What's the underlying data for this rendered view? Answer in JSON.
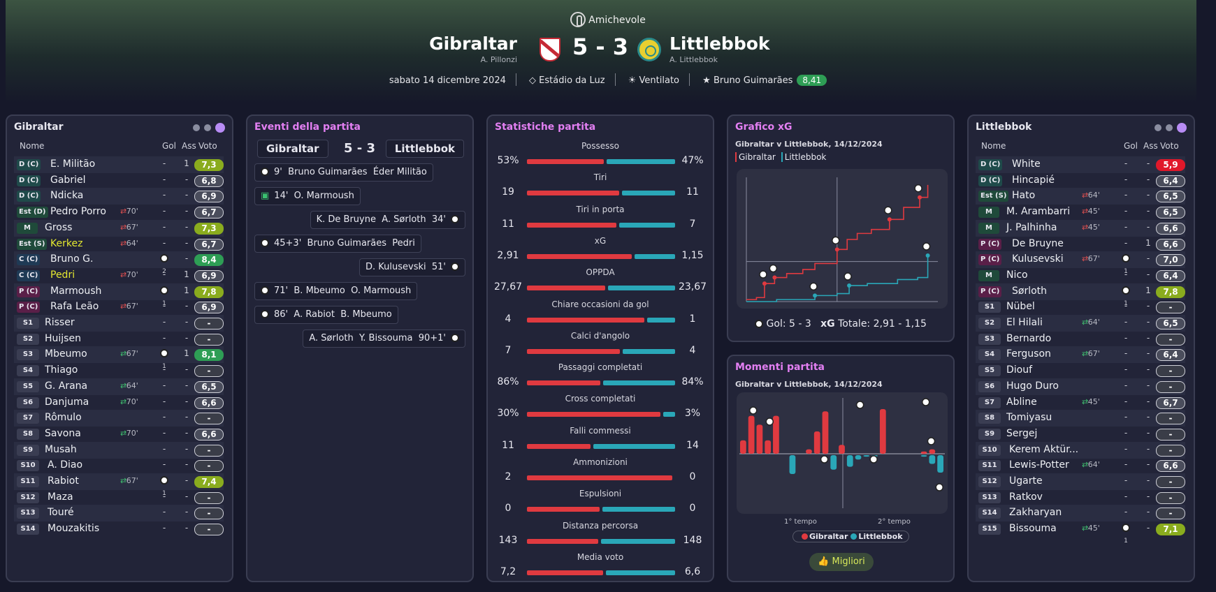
{
  "match": {
    "competition": "Amichevole",
    "home_team": "Gibraltar",
    "home_coach": "A. Pillonzi",
    "away_team": "Littlebbok",
    "away_coach": "A. Littlebbok",
    "score": "5 - 3",
    "date": "sabato 14 dicembre 2024",
    "stadium": "Estádio da Luz",
    "weather": "Ventilato",
    "player_of_match": "Bruno Guimarães",
    "player_of_match_rating": "8,41"
  },
  "home_lineup": {
    "title": "Gibraltar",
    "headers": {
      "name": "Nome",
      "goals": "Gol",
      "assists": "Ass",
      "rating": "Voto"
    },
    "players": [
      {
        "pos": "D (C)",
        "pc": "d",
        "name": "E. Militão",
        "sub": "",
        "g": "-",
        "gc": 0,
        "a": "1",
        "r": "7,3",
        "rc": "yg"
      },
      {
        "pos": "D (C)",
        "pc": "d",
        "name": "Gabriel",
        "sub": "",
        "g": "-",
        "gc": 0,
        "a": "-",
        "r": "6,8",
        "rc": ""
      },
      {
        "pos": "D (C)",
        "pc": "d",
        "name": "Ndicka",
        "sub": "",
        "g": "-",
        "gc": 0,
        "a": "-",
        "r": "6,9",
        "rc": ""
      },
      {
        "pos": "Est (D)",
        "pc": "m",
        "name": "Pedro Porro",
        "sub": "70'",
        "si": false,
        "g": "-",
        "gc": 0,
        "a": "-",
        "r": "6,7",
        "rc": ""
      },
      {
        "pos": "M",
        "pc": "m",
        "name": "Gross",
        "sub": "67'",
        "si": false,
        "g": "-",
        "gc": 0,
        "a": "-",
        "r": "7,3",
        "rc": "yg"
      },
      {
        "pos": "Est (S)",
        "pc": "m",
        "name": "Kerkez",
        "y": true,
        "sub": "64'",
        "si": false,
        "g": "-",
        "gc": 0,
        "a": "-",
        "r": "6,7",
        "rc": ""
      },
      {
        "pos": "C (C)",
        "pc": "c",
        "name": "Bruno G.",
        "sub": "",
        "g": "",
        "gc": 2,
        "a": "-",
        "r": "8,4",
        "rc": "gr"
      },
      {
        "pos": "C (C)",
        "pc": "c",
        "name": "Pedri",
        "y": true,
        "sub": "70'",
        "si": false,
        "g": "-",
        "gc": 0,
        "a": "1",
        "r": "6,9",
        "rc": ""
      },
      {
        "pos": "P (C)",
        "pc": "p",
        "name": "Marmoush",
        "sub": "",
        "g": "",
        "gc": 1,
        "a": "1",
        "r": "7,8",
        "rc": "yg"
      },
      {
        "pos": "P (C)",
        "pc": "p",
        "name": "Rafa Leão",
        "sub": "67'",
        "si": false,
        "g": "-",
        "gc": 0,
        "a": "-",
        "r": "6,9",
        "rc": ""
      },
      {
        "pos": "S1",
        "pc": "s",
        "name": "Risser",
        "sub": "",
        "g": "-",
        "gc": 0,
        "a": "-",
        "r": "-",
        "rc": "ds"
      },
      {
        "pos": "S2",
        "pc": "s",
        "name": "Huijsen",
        "sub": "",
        "g": "-",
        "gc": 0,
        "a": "-",
        "r": "-",
        "rc": "ds"
      },
      {
        "pos": "S3",
        "pc": "s",
        "name": "Mbeumo",
        "sub": "67'",
        "si": true,
        "g": "",
        "gc": 1,
        "a": "1",
        "r": "8,1",
        "rc": "gr"
      },
      {
        "pos": "S4",
        "pc": "s",
        "name": "Thiago",
        "sub": "",
        "g": "-",
        "gc": 0,
        "a": "-",
        "r": "-",
        "rc": "ds"
      },
      {
        "pos": "S5",
        "pc": "s",
        "name": "G. Arana",
        "sub": "64'",
        "si": true,
        "g": "-",
        "gc": 0,
        "a": "-",
        "r": "6,5",
        "rc": ""
      },
      {
        "pos": "S6",
        "pc": "s",
        "name": "Danjuma",
        "sub": "70'",
        "si": true,
        "g": "-",
        "gc": 0,
        "a": "-",
        "r": "6,6",
        "rc": ""
      },
      {
        "pos": "S7",
        "pc": "s",
        "name": "Rômulo",
        "sub": "",
        "g": "-",
        "gc": 0,
        "a": "-",
        "r": "-",
        "rc": "ds"
      },
      {
        "pos": "S8",
        "pc": "s",
        "name": "Savona",
        "sub": "70'",
        "si": true,
        "g": "-",
        "gc": 0,
        "a": "-",
        "r": "6,6",
        "rc": ""
      },
      {
        "pos": "S9",
        "pc": "s",
        "name": "Musah",
        "sub": "",
        "g": "-",
        "gc": 0,
        "a": "-",
        "r": "-",
        "rc": "ds"
      },
      {
        "pos": "S10",
        "pc": "s",
        "name": "A. Diao",
        "sub": "",
        "g": "-",
        "gc": 0,
        "a": "-",
        "r": "-",
        "rc": "ds"
      },
      {
        "pos": "S11",
        "pc": "s",
        "name": "Rabiot",
        "sub": "67'",
        "si": true,
        "g": "",
        "gc": 1,
        "a": "-",
        "r": "7,4",
        "rc": "yg"
      },
      {
        "pos": "S12",
        "pc": "s",
        "name": "Maza",
        "sub": "",
        "g": "-",
        "gc": 0,
        "a": "-",
        "r": "-",
        "rc": "ds"
      },
      {
        "pos": "S13",
        "pc": "s",
        "name": "Touré",
        "sub": "",
        "g": "-",
        "gc": 0,
        "a": "-",
        "r": "-",
        "rc": "ds"
      },
      {
        "pos": "S14",
        "pc": "s",
        "name": "Mouzakitis",
        "sub": "",
        "g": "-",
        "gc": 0,
        "a": "-",
        "r": "-",
        "rc": "ds"
      }
    ]
  },
  "away_lineup": {
    "title": "Littlebbok",
    "headers": {
      "name": "Nome",
      "goals": "Gol",
      "assists": "Ass",
      "rating": "Voto"
    },
    "players": [
      {
        "pos": "D (C)",
        "pc": "d",
        "name": "White",
        "sub": "",
        "g": "-",
        "gc": 0,
        "a": "-",
        "r": "5,9",
        "rc": "rd"
      },
      {
        "pos": "D (C)",
        "pc": "d",
        "name": "Hincapié",
        "sub": "",
        "g": "-",
        "gc": 0,
        "a": "-",
        "r": "6,4",
        "rc": ""
      },
      {
        "pos": "Est (S)",
        "pc": "m",
        "name": "Hato",
        "sub": "64'",
        "si": false,
        "g": "-",
        "gc": 0,
        "a": "-",
        "r": "6,5",
        "rc": ""
      },
      {
        "pos": "M",
        "pc": "m",
        "name": "M. Arambarri",
        "sub": "45'",
        "si": false,
        "g": "-",
        "gc": 0,
        "a": "-",
        "r": "6,5",
        "rc": ""
      },
      {
        "pos": "M",
        "pc": "m",
        "name": "J. Palhinha",
        "sub": "45'",
        "si": false,
        "g": "-",
        "gc": 0,
        "a": "-",
        "r": "6,6",
        "rc": ""
      },
      {
        "pos": "P (C)",
        "pc": "p",
        "name": "De Bruyne",
        "sub": "",
        "g": "-",
        "gc": 0,
        "a": "1",
        "r": "6,6",
        "rc": ""
      },
      {
        "pos": "P (C)",
        "pc": "p",
        "name": "Kulusevski",
        "sub": "67'",
        "si": false,
        "g": "",
        "gc": 1,
        "a": "-",
        "r": "7,0",
        "rc": ""
      },
      {
        "pos": "M",
        "pc": "m",
        "name": "Nico",
        "sub": "",
        "g": "-",
        "gc": 0,
        "a": "-",
        "r": "6,4",
        "rc": ""
      },
      {
        "pos": "P (C)",
        "pc": "p",
        "name": "Sørloth",
        "sub": "",
        "g": "",
        "gc": 1,
        "a": "1",
        "r": "7,8",
        "rc": "yg"
      },
      {
        "pos": "S1",
        "pc": "s",
        "name": "Nübel",
        "sub": "",
        "g": "-",
        "gc": 0,
        "a": "-",
        "r": "-",
        "rc": "ds"
      },
      {
        "pos": "S2",
        "pc": "s",
        "name": "El Hilali",
        "sub": "64'",
        "si": true,
        "g": "-",
        "gc": 0,
        "a": "-",
        "r": "6,5",
        "rc": ""
      },
      {
        "pos": "S3",
        "pc": "s",
        "name": "Bernardo",
        "sub": "",
        "g": "-",
        "gc": 0,
        "a": "-",
        "r": "-",
        "rc": "ds"
      },
      {
        "pos": "S4",
        "pc": "s",
        "name": "Ferguson",
        "sub": "67'",
        "si": true,
        "g": "-",
        "gc": 0,
        "a": "-",
        "r": "6,4",
        "rc": ""
      },
      {
        "pos": "S5",
        "pc": "s",
        "name": "Diouf",
        "sub": "",
        "g": "-",
        "gc": 0,
        "a": "-",
        "r": "-",
        "rc": "ds"
      },
      {
        "pos": "S6",
        "pc": "s",
        "name": "Hugo Duro",
        "sub": "",
        "g": "-",
        "gc": 0,
        "a": "-",
        "r": "-",
        "rc": "ds"
      },
      {
        "pos": "S7",
        "pc": "s",
        "name": "Abline",
        "sub": "45'",
        "si": true,
        "g": "-",
        "gc": 0,
        "a": "-",
        "r": "6,7",
        "rc": ""
      },
      {
        "pos": "S8",
        "pc": "s",
        "name": "Tomiyasu",
        "sub": "",
        "g": "-",
        "gc": 0,
        "a": "-",
        "r": "-",
        "rc": "ds"
      },
      {
        "pos": "S9",
        "pc": "s",
        "name": "Sergej",
        "sub": "",
        "g": "-",
        "gc": 0,
        "a": "-",
        "r": "-",
        "rc": "ds"
      },
      {
        "pos": "S10",
        "pc": "s",
        "name": "Kerem Aktür...",
        "sub": "",
        "g": "-",
        "gc": 0,
        "a": "-",
        "r": "-",
        "rc": "ds"
      },
      {
        "pos": "S11",
        "pc": "s",
        "name": "Lewis-Potter",
        "sub": "64'",
        "si": true,
        "g": "-",
        "gc": 0,
        "a": "-",
        "r": "6,6",
        "rc": ""
      },
      {
        "pos": "S12",
        "pc": "s",
        "name": "Ugarte",
        "sub": "",
        "g": "-",
        "gc": 0,
        "a": "-",
        "r": "-",
        "rc": "ds"
      },
      {
        "pos": "S13",
        "pc": "s",
        "name": "Ratkov",
        "sub": "",
        "g": "-",
        "gc": 0,
        "a": "-",
        "r": "-",
        "rc": "ds"
      },
      {
        "pos": "S14",
        "pc": "s",
        "name": "Zakharyan",
        "sub": "",
        "g": "-",
        "gc": 0,
        "a": "-",
        "r": "-",
        "rc": "ds"
      },
      {
        "pos": "S15",
        "pc": "s",
        "name": "Bissouma",
        "sub": "45'",
        "si": true,
        "g": "",
        "gc": 1,
        "a": "-",
        "r": "7,1",
        "rc": "yg"
      }
    ]
  },
  "events": {
    "title": "Eventi della partita",
    "home": "Gibraltar",
    "away": "Littlebbok",
    "score": "5 - 3",
    "items": [
      {
        "side": "home",
        "icon": "ball",
        "text": "9'  Bruno Guimarães  Éder Militão"
      },
      {
        "side": "home",
        "icon": "var",
        "text": "14'  O. Marmoush"
      },
      {
        "side": "away",
        "icon": "ball",
        "text": "K. De Bruyne  A. Sørloth  34'"
      },
      {
        "side": "home",
        "icon": "ball",
        "text": "45+3'  Bruno Guimarães  Pedri"
      },
      {
        "side": "away",
        "icon": "ball",
        "text": "D. Kulusevski  51'"
      },
      {
        "side": "home",
        "icon": "ball",
        "text": "71'  B. Mbeumo  O. Marmoush"
      },
      {
        "side": "home",
        "icon": "ball",
        "text": "86'  A. Rabiot  B. Mbeumo"
      },
      {
        "side": "away",
        "icon": "ball",
        "text": "A. Sørloth  Y. Bissouma  90+1'"
      }
    ]
  },
  "stats": {
    "title": "Statistiche partita",
    "items": [
      {
        "label": "Possesso",
        "home": "53%",
        "away": "47%",
        "hv": 53,
        "av": 47
      },
      {
        "label": "Tiri",
        "home": "19",
        "away": "11",
        "hv": 19,
        "av": 11
      },
      {
        "label": "Tiri in porta",
        "home": "11",
        "away": "7",
        "hv": 11,
        "av": 7
      },
      {
        "label": "xG",
        "home": "2,91",
        "away": "1,15",
        "hv": 2.91,
        "av": 1.15
      },
      {
        "label": "OPPDA",
        "home": "27,67",
        "away": "23,67",
        "hv": 27.67,
        "av": 23.67
      },
      {
        "label": "Chiare occasioni da gol",
        "home": "4",
        "away": "1",
        "hv": 4,
        "av": 1
      },
      {
        "label": "Calci d'angolo",
        "home": "7",
        "away": "4",
        "hv": 7,
        "av": 4
      },
      {
        "label": "Passaggi completati",
        "home": "86%",
        "away": "84%",
        "hv": 86,
        "av": 84
      },
      {
        "label": "Cross completati",
        "home": "30%",
        "away": "3%",
        "hv": 30,
        "av": 3
      },
      {
        "label": "Falli commessi",
        "home": "11",
        "away": "14",
        "hv": 11,
        "av": 14
      },
      {
        "label": "Ammonizioni",
        "home": "2",
        "away": "0",
        "hv": 2,
        "av": 0
      },
      {
        "label": "Espulsioni",
        "home": "0",
        "away": "0",
        "hv": 0,
        "av": 0
      },
      {
        "label": "Distanza percorsa",
        "home": "143",
        "away": "148",
        "hv": 143,
        "av": 148
      },
      {
        "label": "Media voto",
        "home": "7,2",
        "away": "6,6",
        "hv": 7.2,
        "av": 6.6
      }
    ]
  },
  "xg_chart": {
    "title": "Grafico xG",
    "subtitle": "Gibraltar v Littlebbok, 14/12/2024",
    "legend_home": "Gibraltar",
    "legend_away": "Littlebbok",
    "footer_goals": "Gol: 5 - 3",
    "footer_xg_label": "xG",
    "footer_xg": "Totale: 2,91 - 1,15",
    "home_color": "#e03a40",
    "away_color": "#2aa7b8"
  },
  "momentum": {
    "title": "Momenti partita",
    "subtitle": "Gibraltar v Littlebbok, 14/12/2024",
    "label_first": "1° tempo",
    "label_second": "2° tempo",
    "legend_home": "Gibraltar",
    "legend_away": "Littlebbok",
    "best_label": "Migliori"
  },
  "chart_data": [
    {
      "type": "line",
      "series": [
        {
          "name": "Gibraltar",
          "points": [
            [
              0,
              0.05
            ],
            [
              5,
              0.1
            ],
            [
              9,
              0.45
            ],
            [
              14,
              0.6
            ],
            [
              20,
              0.7
            ],
            [
              28,
              0.8
            ],
            [
              34,
              0.95
            ],
            [
              45,
              1.3
            ],
            [
              50,
              1.55
            ],
            [
              55,
              1.7
            ],
            [
              62,
              1.8
            ],
            [
              71,
              2.05
            ],
            [
              78,
              2.35
            ],
            [
              86,
              2.6
            ],
            [
              90,
              2.91
            ]
          ],
          "goals": [
            9,
            14,
            45,
            71,
            86
          ]
        },
        {
          "name": "Littlebbok",
          "points": [
            [
              0,
              0.0
            ],
            [
              15,
              0.05
            ],
            [
              34,
              0.15
            ],
            [
              45,
              0.2
            ],
            [
              51,
              0.4
            ],
            [
              60,
              0.45
            ],
            [
              75,
              0.55
            ],
            [
              85,
              0.6
            ],
            [
              90,
              1.15
            ]
          ],
          "goals": [
            34,
            51,
            90
          ]
        }
      ],
      "xlim": [
        0,
        95
      ],
      "ylim": [
        0,
        3.1
      ]
    },
    {
      "type": "bar",
      "series": [
        {
          "name": "Gibraltar",
          "values": [
            0.3,
            0.85,
            0.65,
            0.3,
            0.85,
            0,
            0,
            0,
            0.1,
            0.5,
            0.95,
            0,
            0.2,
            0,
            0,
            0,
            0,
            1.0,
            0,
            0,
            0,
            0,
            0.05,
            0.1,
            0
          ]
        },
        {
          "name": "Littlebbok",
          "values": [
            0,
            0,
            0,
            0,
            0,
            0,
            0.65,
            0,
            0,
            0,
            0,
            0.5,
            0,
            0.4,
            0.15,
            0.05,
            0.05,
            0,
            0,
            0,
            0,
            0,
            0.05,
            0.3,
            0.6
          ]
        }
      ]
    }
  ]
}
